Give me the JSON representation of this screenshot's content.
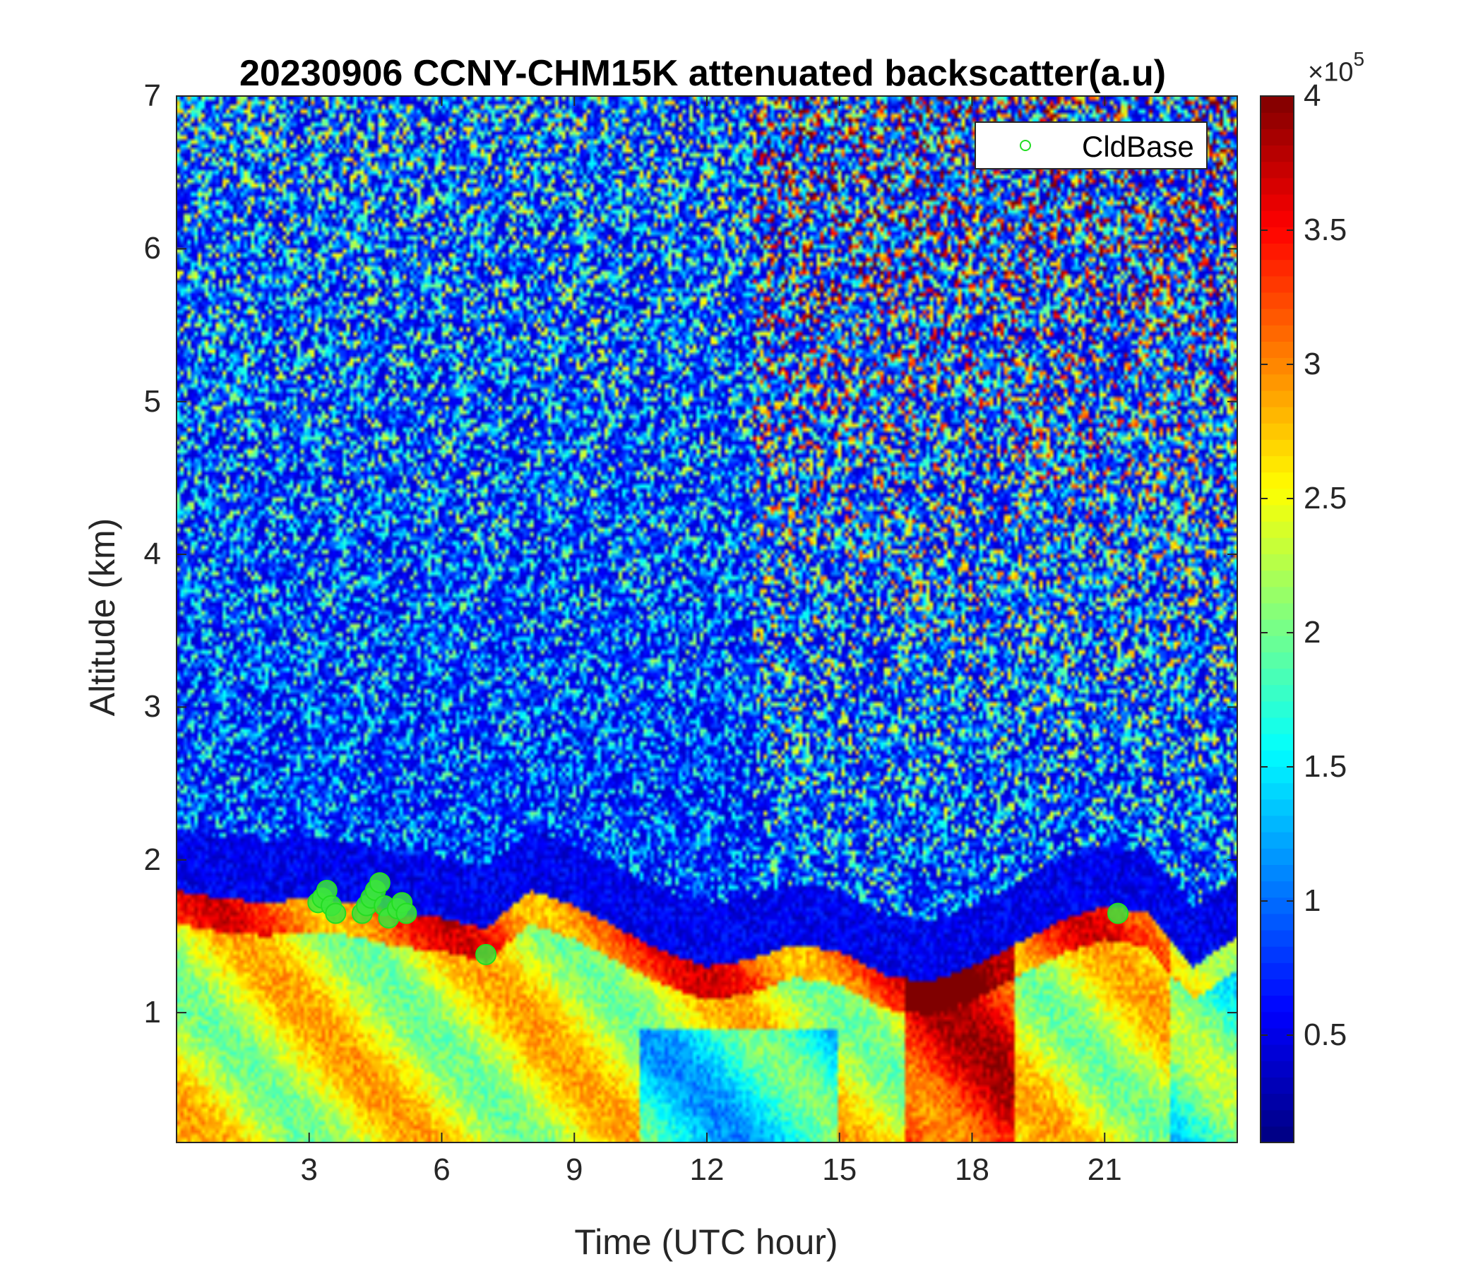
{
  "chart_data": {
    "type": "heatmap",
    "title": "20230906 CCNY-CHM15K attenuated backscatter(a.u)",
    "xlabel": "Time (UTC hour)",
    "ylabel": "Altitude (km)",
    "xlim": [
      0,
      24
    ],
    "ylim": [
      0.15,
      7
    ],
    "x_ticks": [
      3,
      6,
      9,
      12,
      15,
      18,
      21
    ],
    "x_tick_labels": [
      "3",
      "6",
      "9",
      "12",
      "15",
      "18",
      "21"
    ],
    "y_ticks": [
      1,
      2,
      3,
      4,
      5,
      6,
      7
    ],
    "y_tick_labels": [
      "1",
      "2",
      "3",
      "4",
      "5",
      "6",
      "7"
    ],
    "colorbar": {
      "colormap": "jet",
      "clim": [
        0.1,
        4
      ],
      "ticks": [
        0.5,
        1,
        1.5,
        2,
        2.5,
        3,
        3.5,
        4
      ],
      "tick_labels": [
        "0.5",
        "1",
        "1.5",
        "2",
        "2.5",
        "3",
        "3.5",
        "4"
      ],
      "multiplier_base": "×10",
      "multiplier_exponent": "5"
    },
    "boundary_layer_top_km": {
      "hours": [
        0,
        1,
        2,
        3,
        4,
        5,
        6,
        7,
        8,
        9,
        10,
        11,
        12,
        13,
        14,
        15,
        16,
        17,
        18,
        19,
        20,
        21,
        22,
        23,
        24
      ],
      "values": [
        1.8,
        1.75,
        1.72,
        1.75,
        1.72,
        1.65,
        1.62,
        1.55,
        1.8,
        1.7,
        1.55,
        1.4,
        1.3,
        1.35,
        1.45,
        1.4,
        1.25,
        1.2,
        1.3,
        1.45,
        1.6,
        1.7,
        1.65,
        1.3,
        1.5
      ]
    },
    "series": [
      {
        "name": "CldBase",
        "marker": "circle",
        "color": "#22dd22",
        "x": [
          3.2,
          3.3,
          3.4,
          3.5,
          3.6,
          4.2,
          4.3,
          4.4,
          4.5,
          4.6,
          4.7,
          4.8,
          5.0,
          5.1,
          5.2,
          7.0,
          21.3
        ],
        "y": [
          1.72,
          1.75,
          1.8,
          1.7,
          1.65,
          1.65,
          1.7,
          1.75,
          1.8,
          1.85,
          1.7,
          1.62,
          1.68,
          1.72,
          1.65,
          1.38,
          1.65
        ]
      }
    ],
    "legend_location": "top-right"
  }
}
